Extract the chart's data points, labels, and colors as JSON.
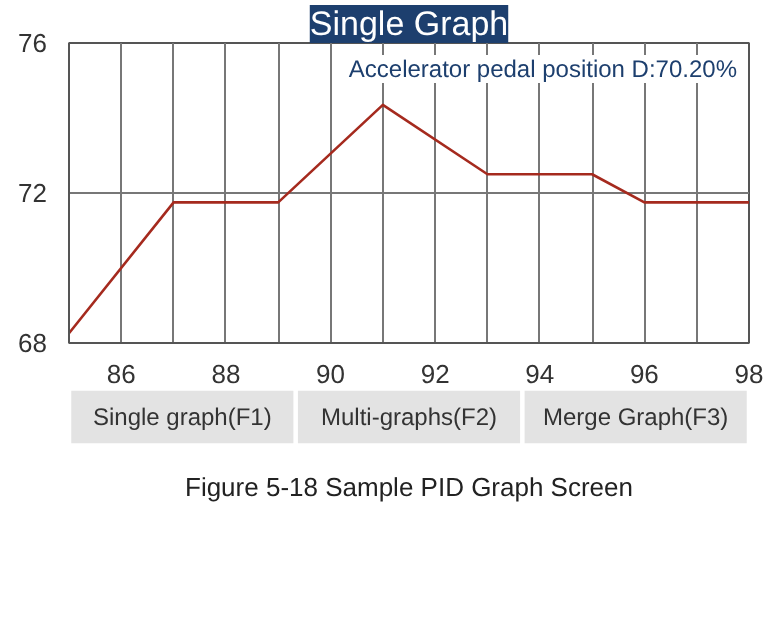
{
  "chart_data": {
    "type": "line",
    "title": "Single Graph",
    "x": [
      85,
      87,
      89,
      91,
      93,
      95,
      96,
      98
    ],
    "series": [
      {
        "color": "#a52a1e",
        "values": [
          68.26,
          71.75,
          71.75,
          74.35,
          72.5,
          72.5,
          71.75,
          71.75
        ]
      }
    ],
    "xlim": [
      85,
      98
    ],
    "xticks": [
      86,
      {
        "value": 87,
        "label": null
      },
      88,
      {
        "value": 89,
        "label": null
      },
      90,
      {
        "value": 91,
        "label": null
      },
      92,
      {
        "value": 93,
        "label": null
      },
      94,
      {
        "value": 95,
        "label": null
      },
      96,
      {
        "value": 97,
        "label": null
      },
      98
    ],
    "ylim": [
      68,
      76
    ],
    "yticks": [
      68,
      72,
      76
    ],
    "grid": true,
    "marker": "none",
    "line_style": "solid",
    "annotations": [
      "Accelerator pedal position D:70.20%",
      "Single graph(F1)",
      "Multi-graphs(F2)",
      "Merge Graph(F3)",
      "Figure 5-18 Sample PID Graph Screen"
    ]
  }
}
